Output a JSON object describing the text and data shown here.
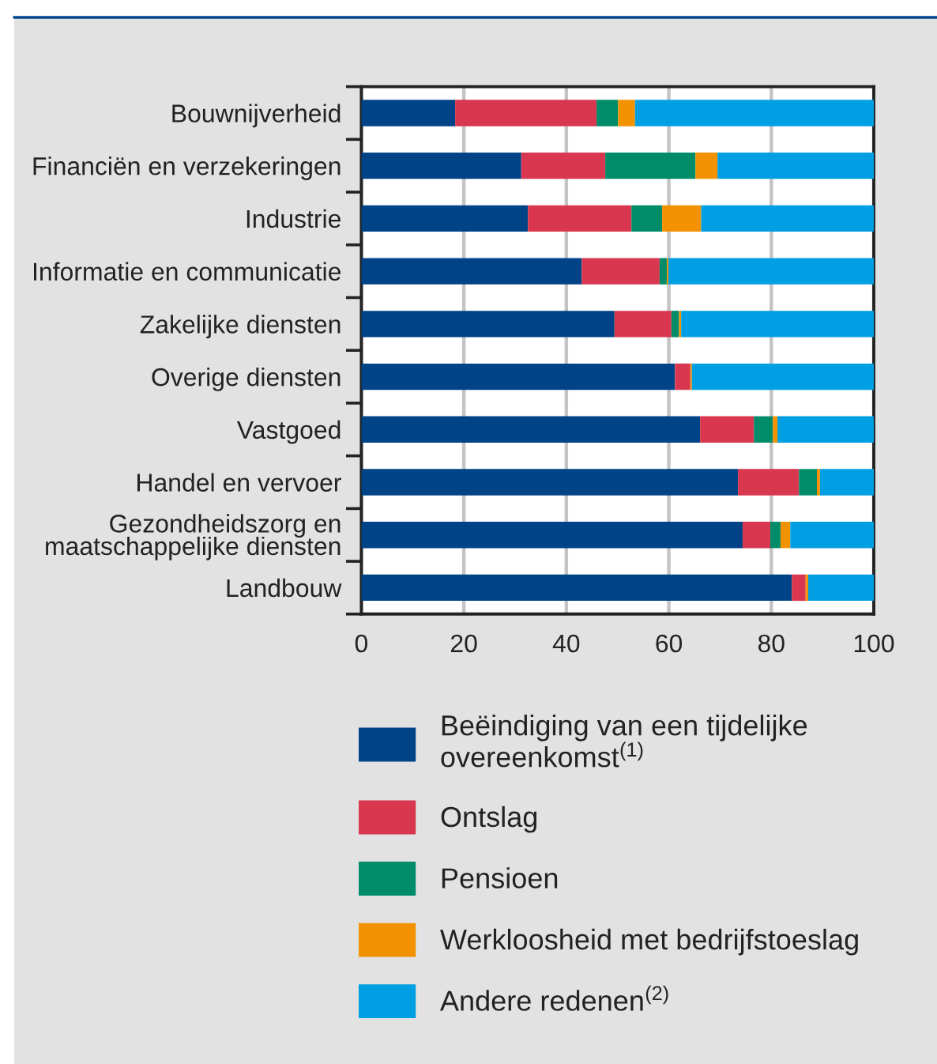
{
  "chart_data": {
    "type": "bar",
    "orientation": "horizontal",
    "stacked": true,
    "categories": [
      "Bouwnijverheid",
      "Financiën en verzekeringen",
      "Industrie",
      "Informatie en communicatie",
      "Zakelijke diensten",
      "Overige diensten",
      "Vastgoed",
      "Handel en vervoer",
      "Gezondheidszorg en\nmaatschappelijke diensten",
      "Landbouw"
    ],
    "series": [
      {
        "name": "Beëindiging van een tijdelijke\novereenkomst$^{(1)}$",
        "color": "#004386",
        "values": [
          18.3,
          31.2,
          32.5,
          43.0,
          49.4,
          61.2,
          66.1,
          73.5,
          74.4,
          84.0
        ]
      },
      {
        "name": "Ontslag",
        "color": "#d9374f",
        "values": [
          27.6,
          16.4,
          20.2,
          15.2,
          11.1,
          3.0,
          10.5,
          11.9,
          5.4,
          2.7
        ]
      },
      {
        "name": "Pensioen",
        "color": "#008c69",
        "values": [
          4.2,
          17.6,
          6.0,
          1.4,
          1.5,
          null,
          3.7,
          3.5,
          2.0,
          null
        ]
      },
      {
        "name": "Werkloosheid met bedrijfstoeslag",
        "color": "#f39200",
        "values": [
          3.3,
          4.3,
          7.6,
          0.3,
          0.4,
          0.3,
          0.9,
          0.6,
          1.9,
          0.5
        ]
      },
      {
        "name": "Andere redenen$^{(2)}$",
        "color": "#009fe3",
        "values": [
          46.6,
          30.5,
          33.7,
          40.1,
          37.6,
          35.5,
          18.8,
          10.5,
          16.3,
          12.8
        ]
      }
    ],
    "xlim": [
      0,
      100
    ],
    "xticks": [
      0,
      20,
      40,
      60,
      80,
      100
    ],
    "grid": "x",
    "legend": "bottom"
  }
}
